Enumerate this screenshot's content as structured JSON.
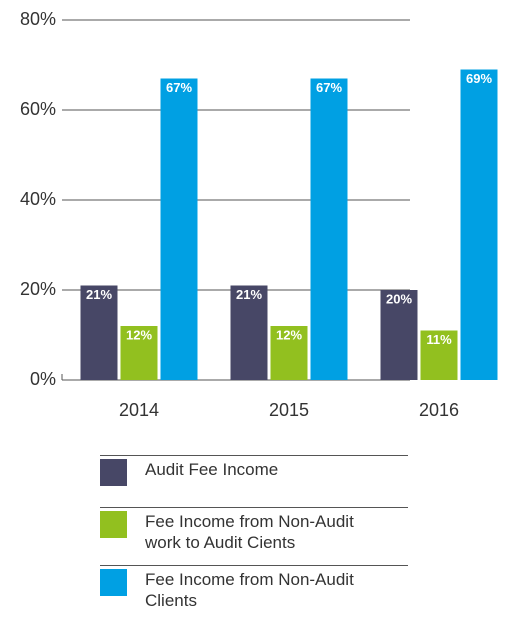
{
  "chart_data": {
    "type": "bar",
    "categories": [
      "2014",
      "2015",
      "2016"
    ],
    "series": [
      {
        "name": "Audit Fee Income",
        "color": "#474766",
        "values": [
          21,
          21,
          20
        ],
        "value_labels": [
          "21%",
          "21%",
          "20%"
        ]
      },
      {
        "name": "Fee Income from Non-Audit work to Audit Cients",
        "color": "#92c01f",
        "values": [
          12,
          12,
          11
        ],
        "value_labels": [
          "12%",
          "12%",
          "11%"
        ]
      },
      {
        "name": "Fee Income from Non-Audit Clients",
        "color": "#00a0e3",
        "values": [
          67,
          67,
          69
        ],
        "value_labels": [
          "67%",
          "67%",
          "69%"
        ]
      }
    ],
    "ylim": [
      0,
      80
    ],
    "yticks": [
      {
        "value": 0,
        "label": "0%"
      },
      {
        "value": 20,
        "label": "20%"
      },
      {
        "value": 40,
        "label": "40%"
      },
      {
        "value": 60,
        "label": "60%"
      },
      {
        "value": 80,
        "label": "80%"
      }
    ],
    "grid": true,
    "legend": "bottom"
  }
}
